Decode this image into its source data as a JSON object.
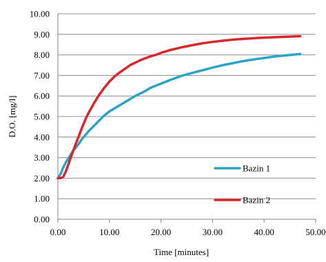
{
  "chart_data": {
    "type": "line",
    "title": "",
    "xlabel": "Time [minutes]",
    "ylabel": "D.O. [mg/l]",
    "xlim": [
      0,
      50
    ],
    "ylim": [
      0,
      10
    ],
    "x_ticks": [
      0,
      10,
      20,
      30,
      40,
      50
    ],
    "y_ticks": [
      0,
      1,
      2,
      3,
      4,
      5,
      6,
      7,
      8,
      9,
      10
    ],
    "x_tick_labels": [
      "0.00",
      "10.00",
      "20.00",
      "30.00",
      "40.00",
      "50.00"
    ],
    "y_tick_labels": [
      "0.00",
      "1.00",
      "2.00",
      "3.00",
      "4.00",
      "5.00",
      "6.00",
      "7.00",
      "8.00",
      "9.00",
      "10.00"
    ],
    "grid": "horizontal",
    "legend_position": "right, lower middle",
    "series": [
      {
        "name": "Bazin 1",
        "color": "#2aa3c4",
        "x": [
          0,
          0.5,
          1,
          1.5,
          2,
          2.5,
          3,
          3.5,
          4,
          4.5,
          5,
          6,
          7,
          8,
          9,
          10,
          11,
          12,
          13,
          14,
          15,
          16,
          17,
          18,
          19,
          20,
          22,
          24,
          26,
          28,
          30,
          32,
          34,
          36,
          38,
          40,
          42,
          44,
          46,
          47
        ],
        "y": [
          2.0,
          2.2,
          2.5,
          2.75,
          2.95,
          3.15,
          3.35,
          3.5,
          3.65,
          3.85,
          4.0,
          4.3,
          4.55,
          4.8,
          5.05,
          5.25,
          5.4,
          5.55,
          5.7,
          5.85,
          6.0,
          6.12,
          6.25,
          6.4,
          6.5,
          6.6,
          6.8,
          6.98,
          7.12,
          7.25,
          7.38,
          7.5,
          7.6,
          7.7,
          7.78,
          7.85,
          7.92,
          7.97,
          8.02,
          8.04
        ]
      },
      {
        "name": "Bazin 2",
        "color": "#d9262c",
        "x": [
          0,
          0.5,
          1,
          1.5,
          2,
          2.5,
          3,
          3.5,
          4,
          4.5,
          5,
          5.5,
          6,
          7,
          8,
          9,
          10,
          11,
          12,
          13,
          14,
          15,
          16,
          17,
          18,
          19,
          20,
          22,
          24,
          26,
          28,
          30,
          32,
          34,
          36,
          38,
          40,
          42,
          44,
          46,
          47
        ],
        "y": [
          2.0,
          2.0,
          2.05,
          2.3,
          2.65,
          3.0,
          3.35,
          3.7,
          4.0,
          4.35,
          4.65,
          4.95,
          5.2,
          5.65,
          6.05,
          6.4,
          6.7,
          6.95,
          7.15,
          7.32,
          7.5,
          7.62,
          7.74,
          7.84,
          7.93,
          8.0,
          8.1,
          8.25,
          8.37,
          8.47,
          8.56,
          8.63,
          8.69,
          8.74,
          8.78,
          8.81,
          8.84,
          8.86,
          8.88,
          8.9,
          8.91
        ]
      }
    ]
  }
}
